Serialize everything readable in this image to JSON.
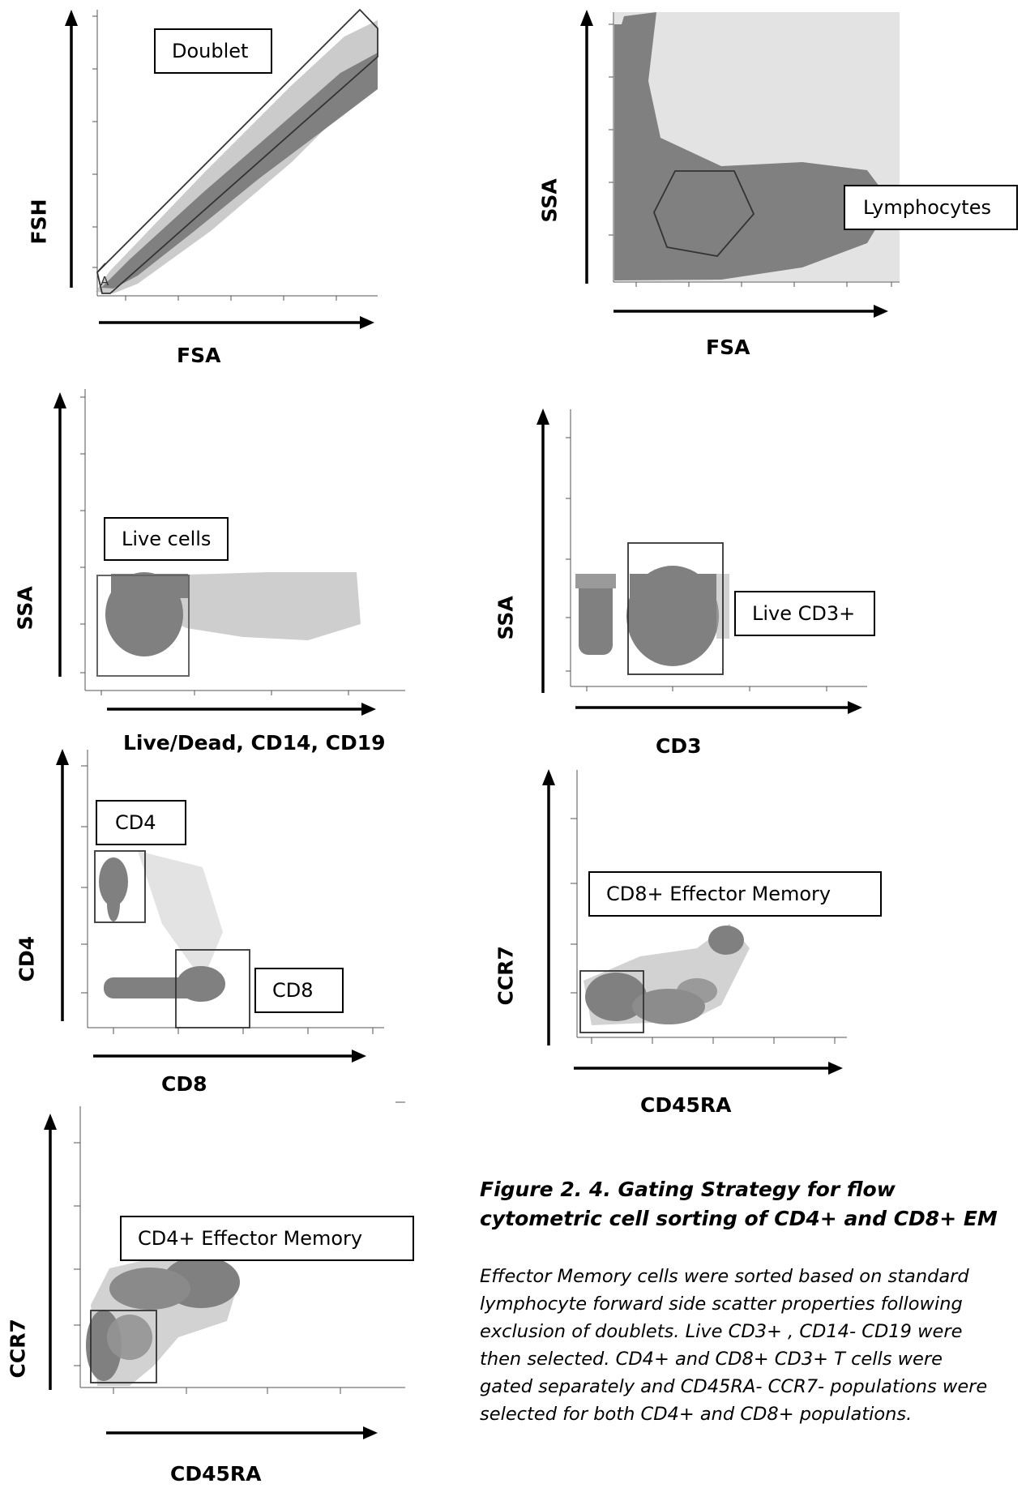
{
  "panels": [
    {
      "id": "p1",
      "xlabel": "FSA",
      "ylabel": "FSH",
      "gates": [
        "Doublet"
      ],
      "gate_letter": "A"
    },
    {
      "id": "p2",
      "xlabel": "FSA",
      "ylabel": "SSA",
      "gates": [
        "Lymphocytes"
      ]
    },
    {
      "id": "p3",
      "xlabel": "Live/Dead, CD14, CD19",
      "ylabel": "SSA",
      "gates": [
        "Live cells"
      ]
    },
    {
      "id": "p4",
      "xlabel": "CD3",
      "ylabel": "SSA",
      "gates": [
        "Live CD3+"
      ]
    },
    {
      "id": "p5",
      "xlabel": "CD8",
      "ylabel": "CD4",
      "gates": [
        "CD4",
        "CD8"
      ]
    },
    {
      "id": "p6",
      "xlabel": "CD45RA",
      "ylabel": "CCR7",
      "gates": [
        "CD8+ Effector Memory"
      ]
    },
    {
      "id": "p7",
      "xlabel": "CD45RA",
      "ylabel": "CCR7",
      "gates": [
        "CD4+ Effector Memory"
      ]
    }
  ],
  "caption": {
    "title": "Figure 2. 4. Gating Strategy for flow cytometric cell sorting of CD4+ and CD8+ EM",
    "body": "Effector Memory cells were sorted based on standard lymphocyte forward side scatter properties following exclusion of doublets. Live CD3+ , CD14- CD19 were then selected. CD4+ and CD8+ CD3+ T cells were gated separately and CD45RA- CCR7- populations were selected for both CD4+ and CD8+ populations."
  },
  "colors": {
    "events": "#808080",
    "sparse": "#a6a6a6",
    "gate": "#333333",
    "axis": "#000000"
  }
}
